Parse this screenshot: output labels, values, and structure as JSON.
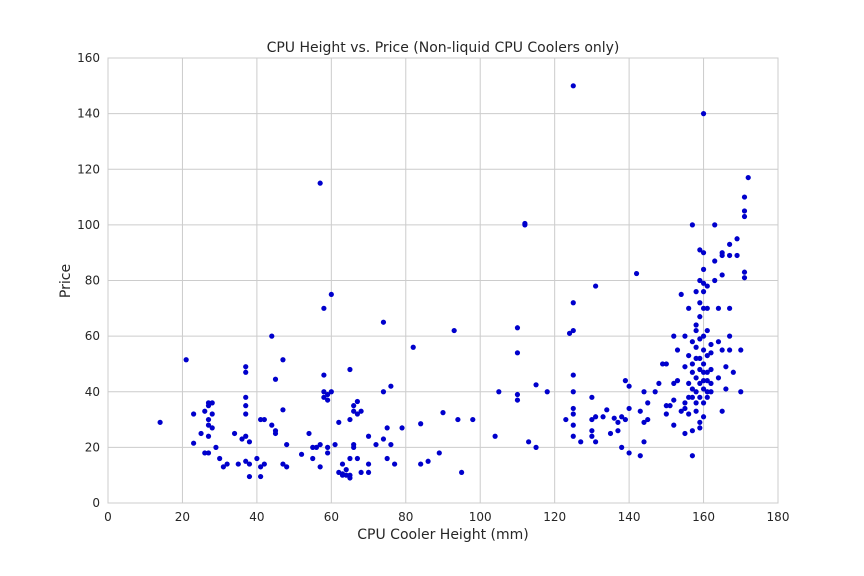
{
  "chart_data": {
    "type": "scatter",
    "title": "CPU Height vs. Price (Non-liquid CPU Coolers only)",
    "xlabel": "CPU Cooler Height (mm)",
    "ylabel": "Price",
    "xlim": [
      0,
      180
    ],
    "ylim": [
      0,
      160
    ],
    "xticks": [
      0,
      20,
      40,
      60,
      80,
      100,
      120,
      140,
      160,
      180
    ],
    "yticks": [
      0,
      20,
      40,
      60,
      80,
      100,
      120,
      140,
      160
    ],
    "grid": true,
    "point_color": "#0000cc",
    "points": [
      [
        14,
        29
      ],
      [
        21,
        51.5
      ],
      [
        23,
        32
      ],
      [
        23,
        21.5
      ],
      [
        25,
        25
      ],
      [
        26,
        33
      ],
      [
        26,
        18
      ],
      [
        27,
        36
      ],
      [
        27,
        35
      ],
      [
        27,
        30
      ],
      [
        27,
        28
      ],
      [
        27,
        24
      ],
      [
        27,
        18
      ],
      [
        28,
        36
      ],
      [
        28,
        32
      ],
      [
        28,
        27
      ],
      [
        29,
        20
      ],
      [
        30,
        16
      ],
      [
        31,
        13
      ],
      [
        32,
        14
      ],
      [
        34,
        25
      ],
      [
        35,
        14
      ],
      [
        36,
        23
      ],
      [
        37,
        49
      ],
      [
        37,
        47
      ],
      [
        37,
        38
      ],
      [
        37,
        35
      ],
      [
        37,
        32
      ],
      [
        37,
        24
      ],
      [
        37,
        15
      ],
      [
        38,
        22
      ],
      [
        38,
        14
      ],
      [
        38,
        9.5
      ],
      [
        40,
        16
      ],
      [
        41,
        30
      ],
      [
        41,
        13
      ],
      [
        41,
        9.5
      ],
      [
        42,
        30
      ],
      [
        42,
        14
      ],
      [
        44,
        60
      ],
      [
        44,
        28
      ],
      [
        45,
        44.5
      ],
      [
        45,
        25
      ],
      [
        45,
        26
      ],
      [
        47,
        51.5
      ],
      [
        47,
        33.5
      ],
      [
        47,
        14
      ],
      [
        48,
        21
      ],
      [
        48,
        13
      ],
      [
        52,
        17.5
      ],
      [
        54,
        25
      ],
      [
        55,
        20
      ],
      [
        55,
        16
      ],
      [
        56,
        20
      ],
      [
        57,
        115
      ],
      [
        57,
        21
      ],
      [
        57,
        13
      ],
      [
        58,
        70
      ],
      [
        58,
        46
      ],
      [
        58,
        40
      ],
      [
        58,
        38
      ],
      [
        59,
        39
      ],
      [
        59,
        37
      ],
      [
        59,
        18
      ],
      [
        59,
        20
      ],
      [
        60,
        75
      ],
      [
        60,
        40
      ],
      [
        61,
        21
      ],
      [
        62,
        29
      ],
      [
        62,
        11
      ],
      [
        63,
        14
      ],
      [
        63,
        10
      ],
      [
        63,
        10.5
      ],
      [
        64,
        12
      ],
      [
        64,
        10
      ],
      [
        65,
        48
      ],
      [
        65,
        30
      ],
      [
        65,
        16
      ],
      [
        65,
        10
      ],
      [
        65,
        9
      ],
      [
        66,
        33
      ],
      [
        66,
        35
      ],
      [
        66,
        21
      ],
      [
        66,
        20
      ],
      [
        67,
        36.5
      ],
      [
        67,
        32
      ],
      [
        67,
        16
      ],
      [
        68,
        33
      ],
      [
        68,
        11
      ],
      [
        70,
        24
      ],
      [
        70,
        14
      ],
      [
        70,
        11
      ],
      [
        72,
        21
      ],
      [
        74,
        65
      ],
      [
        74,
        40
      ],
      [
        74,
        23
      ],
      [
        75,
        27
      ],
      [
        75,
        16
      ],
      [
        76,
        42
      ],
      [
        76,
        21
      ],
      [
        77,
        14
      ],
      [
        79,
        27
      ],
      [
        82,
        56
      ],
      [
        84,
        28.5
      ],
      [
        84,
        14
      ],
      [
        86,
        15
      ],
      [
        89,
        18
      ],
      [
        90,
        32.5
      ],
      [
        93,
        62
      ],
      [
        94,
        30
      ],
      [
        95,
        11
      ],
      [
        98,
        30
      ],
      [
        104,
        24
      ],
      [
        105,
        40
      ],
      [
        110,
        63
      ],
      [
        110,
        54
      ],
      [
        110,
        37
      ],
      [
        110,
        39
      ],
      [
        112,
        100
      ],
      [
        112,
        100.5
      ],
      [
        113,
        22
      ],
      [
        115,
        42.5
      ],
      [
        115,
        20
      ],
      [
        118,
        40
      ],
      [
        123,
        30
      ],
      [
        124,
        61
      ],
      [
        125,
        150
      ],
      [
        125,
        62
      ],
      [
        125,
        72
      ],
      [
        125,
        46
      ],
      [
        125,
        40
      ],
      [
        125,
        34
      ],
      [
        125,
        32
      ],
      [
        125,
        28
      ],
      [
        125,
        24
      ],
      [
        127,
        22
      ],
      [
        130,
        38
      ],
      [
        130,
        30
      ],
      [
        130,
        26
      ],
      [
        130,
        24
      ],
      [
        131,
        78
      ],
      [
        131,
        31
      ],
      [
        131,
        22
      ],
      [
        133,
        31
      ],
      [
        134,
        33.5
      ],
      [
        135,
        25
      ],
      [
        136,
        30.5
      ],
      [
        137,
        26
      ],
      [
        137,
        29
      ],
      [
        138,
        20
      ],
      [
        138,
        31
      ],
      [
        139,
        44
      ],
      [
        139,
        30
      ],
      [
        140,
        42
      ],
      [
        140,
        34
      ],
      [
        140,
        18
      ],
      [
        142,
        82.5
      ],
      [
        143,
        33
      ],
      [
        143,
        17
      ],
      [
        144,
        40
      ],
      [
        144,
        29
      ],
      [
        144,
        22
      ],
      [
        145,
        30
      ],
      [
        145,
        36
      ],
      [
        147,
        40
      ],
      [
        148,
        43
      ],
      [
        149,
        50
      ],
      [
        150,
        50
      ],
      [
        150,
        35
      ],
      [
        150,
        32
      ],
      [
        151,
        35
      ],
      [
        152,
        60
      ],
      [
        152,
        43
      ],
      [
        152,
        37
      ],
      [
        152,
        28
      ],
      [
        153,
        55
      ],
      [
        153,
        44
      ],
      [
        154,
        75
      ],
      [
        154,
        33
      ],
      [
        155,
        60
      ],
      [
        155,
        49
      ],
      [
        155,
        36
      ],
      [
        155,
        34
      ],
      [
        155,
        25
      ],
      [
        156,
        70
      ],
      [
        156,
        53
      ],
      [
        156,
        43
      ],
      [
        156,
        32
      ],
      [
        156,
        38
      ],
      [
        157,
        100
      ],
      [
        157,
        58
      ],
      [
        157,
        50
      ],
      [
        157,
        47
      ],
      [
        157,
        41
      ],
      [
        157,
        38
      ],
      [
        157,
        26
      ],
      [
        157,
        17
      ],
      [
        158,
        76
      ],
      [
        158,
        64
      ],
      [
        158,
        62
      ],
      [
        158,
        56
      ],
      [
        158,
        52
      ],
      [
        158,
        45
      ],
      [
        158,
        40
      ],
      [
        158,
        36
      ],
      [
        158,
        33
      ],
      [
        159,
        91
      ],
      [
        159,
        80
      ],
      [
        159,
        72
      ],
      [
        159,
        67
      ],
      [
        159,
        59
      ],
      [
        159,
        52
      ],
      [
        159,
        48
      ],
      [
        159,
        43
      ],
      [
        159,
        38
      ],
      [
        159,
        29
      ],
      [
        159,
        27
      ],
      [
        160,
        140
      ],
      [
        160,
        90
      ],
      [
        160,
        84
      ],
      [
        160,
        79
      ],
      [
        160,
        76
      ],
      [
        160,
        70
      ],
      [
        160,
        60
      ],
      [
        160,
        55
      ],
      [
        160,
        50
      ],
      [
        160,
        47
      ],
      [
        160,
        44
      ],
      [
        160,
        41
      ],
      [
        160,
        36
      ],
      [
        160,
        31
      ],
      [
        161,
        78
      ],
      [
        161,
        70
      ],
      [
        161,
        62
      ],
      [
        161,
        53
      ],
      [
        161,
        47
      ],
      [
        161,
        44
      ],
      [
        161,
        40
      ],
      [
        161,
        38
      ],
      [
        162,
        57
      ],
      [
        162,
        54
      ],
      [
        162,
        48
      ],
      [
        162,
        43
      ],
      [
        162,
        40
      ],
      [
        163,
        100
      ],
      [
        163,
        87
      ],
      [
        163,
        80
      ],
      [
        164,
        70
      ],
      [
        164,
        58
      ],
      [
        164,
        45
      ],
      [
        165,
        90
      ],
      [
        165,
        89
      ],
      [
        165,
        82
      ],
      [
        165,
        55
      ],
      [
        165,
        33
      ],
      [
        166,
        49
      ],
      [
        166,
        41
      ],
      [
        167,
        93
      ],
      [
        167,
        89
      ],
      [
        167,
        70
      ],
      [
        167,
        60
      ],
      [
        167,
        55
      ],
      [
        168,
        47
      ],
      [
        169,
        95
      ],
      [
        169,
        89
      ],
      [
        170,
        55
      ],
      [
        170,
        40
      ],
      [
        171,
        110
      ],
      [
        171,
        105
      ],
      [
        171,
        103
      ],
      [
        171,
        83
      ],
      [
        171,
        81
      ],
      [
        172,
        117
      ]
    ]
  }
}
